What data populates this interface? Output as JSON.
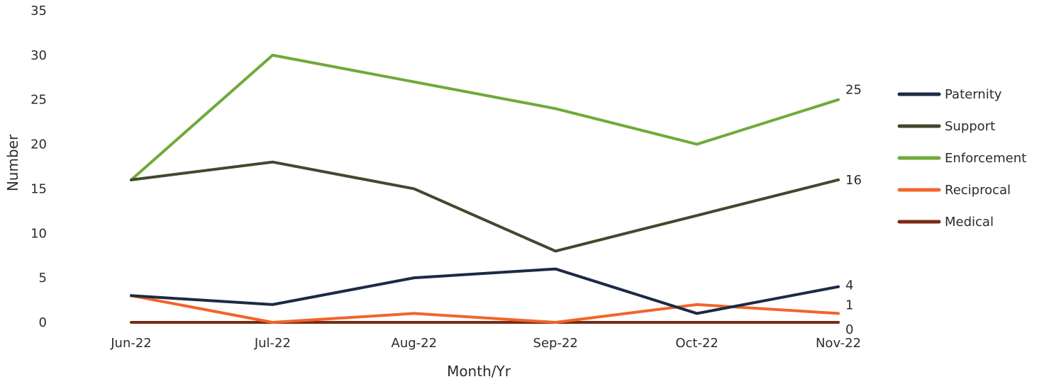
{
  "chart_data": {
    "type": "line",
    "title": "",
    "xlabel": "Month/Yr",
    "ylabel": "Number",
    "categories": [
      "Jun-22",
      "Jul-22",
      "Aug-22",
      "Sep-22",
      "Oct-22",
      "Nov-22"
    ],
    "ylim": [
      0,
      35
    ],
    "yticks": [
      0,
      5,
      10,
      15,
      20,
      25,
      30,
      35
    ],
    "grid": false,
    "legend_position": "right",
    "series": [
      {
        "name": "Paternity",
        "color": "#1b2a44",
        "values": [
          3,
          2,
          5,
          6,
          1,
          4
        ]
      },
      {
        "name": "Support",
        "color": "#3f4a2c",
        "values": [
          16,
          18,
          15,
          8,
          12,
          16
        ]
      },
      {
        "name": "Enforcement",
        "color": "#6faa3a",
        "values": [
          16,
          30,
          27,
          24,
          20,
          25
        ]
      },
      {
        "name": "Reciprocal",
        "color": "#f2642a",
        "values": [
          3,
          0,
          1,
          0,
          2,
          1
        ]
      },
      {
        "name": "Medical",
        "color": "#7a2a14",
        "values": [
          0,
          0,
          0,
          0,
          0,
          0
        ]
      }
    ],
    "end_labels": [
      {
        "series": "Enforcement",
        "text": "25"
      },
      {
        "series": "Support",
        "text": "16"
      },
      {
        "series": "Paternity",
        "text": "4"
      },
      {
        "series": "Reciprocal",
        "text": "1"
      },
      {
        "series": "Medical",
        "text": "0"
      }
    ]
  }
}
